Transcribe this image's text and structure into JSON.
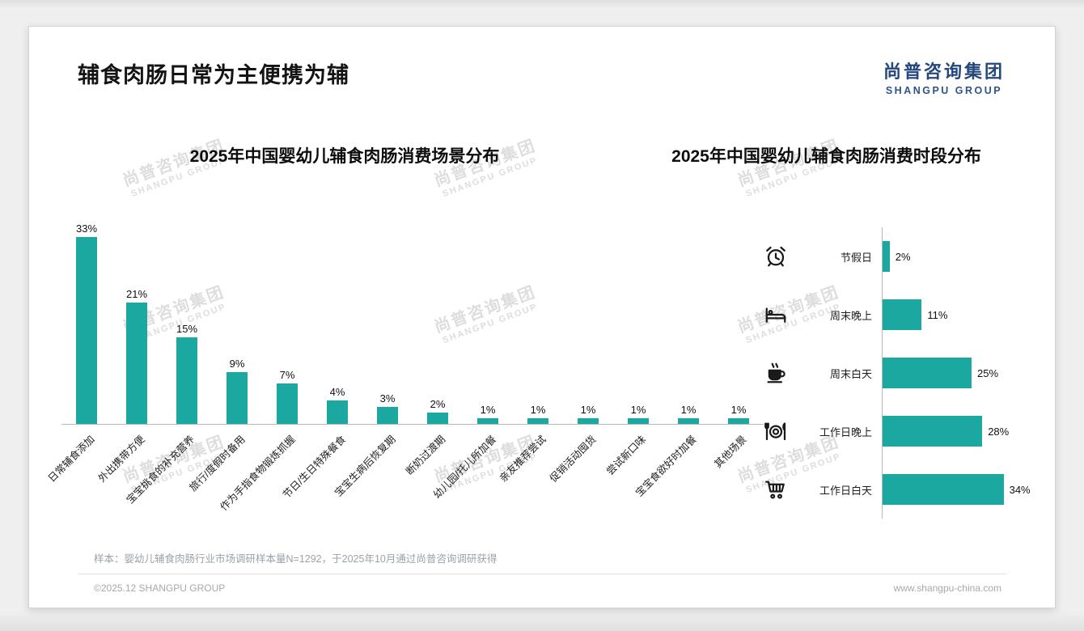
{
  "page": {
    "title": "辅食肉肠日常为主便携为辅",
    "logo": {
      "cn": "尚普咨询集团",
      "en": "SHANGPU GROUP"
    },
    "watermark": {
      "cn": "尚普咨询集团",
      "en": "SHANGPU GROUP"
    },
    "footnote": "样本：婴幼儿辅食肉肠行业市场调研样本量N=1292，于2025年10月通过尚普咨询调研获得",
    "footer_left": "©2025.12 SHANGPU GROUP",
    "footer_right": "www.shangpu-china.com"
  },
  "colors": {
    "bar": "#1aa8a0",
    "logo_blue": "#24477d",
    "watermark": "#d8d8d8"
  },
  "chart_data": [
    {
      "type": "bar",
      "orientation": "vertical",
      "title": "2025年中国婴幼儿辅食肉肠消费场景分布",
      "categories": [
        "日常辅食添加",
        "外出携带方便",
        "宝宝挑食的补充营养",
        "旅行/度假时备用",
        "作为手指食物锻炼抓握",
        "节日/生日特殊餐食",
        "宝宝生病后恢复期",
        "断奶过渡期",
        "幼儿园/托儿所加餐",
        "亲友推荐尝试",
        "促销活动囤货",
        "尝试新口味",
        "宝宝食欲好时加餐",
        "其他场景"
      ],
      "values": [
        33,
        21,
        15,
        9,
        7,
        4,
        3,
        2,
        1,
        1,
        1,
        1,
        1,
        1
      ],
      "unit": "%",
      "ylim": [
        0,
        35
      ],
      "grid": false,
      "legend": "none"
    },
    {
      "type": "bar",
      "orientation": "horizontal",
      "title": "2025年中国婴幼儿辅食肉肠消费时段分布",
      "categories": [
        "节假日",
        "周末晚上",
        "周末白天",
        "工作日晚上",
        "工作日白天"
      ],
      "values": [
        2,
        11,
        25,
        28,
        34
      ],
      "icons": [
        "alarm-clock-icon",
        "bed-icon",
        "coffee-cup-icon",
        "dining-plate-icon",
        "shopping-cart-icon"
      ],
      "unit": "%",
      "xlim": [
        0,
        40
      ],
      "grid": false,
      "legend": "none"
    }
  ]
}
